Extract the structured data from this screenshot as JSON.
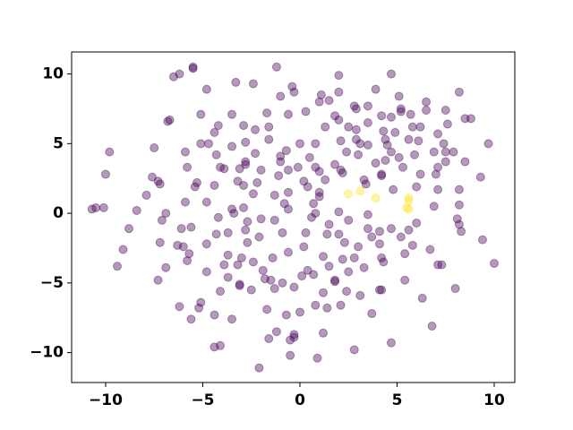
{
  "chart_data": {
    "type": "scatter",
    "xlim": [
      -11.75,
      11.06
    ],
    "ylim": [
      -12.15,
      11.58
    ],
    "xticks": [
      {
        "value": -10,
        "label": "−10"
      },
      {
        "value": -5,
        "label": "−5"
      },
      0,
      5,
      10
    ],
    "yticks": [
      {
        "value": -10,
        "label": "−10"
      },
      {
        "value": -5,
        "label": "−5"
      },
      0,
      5,
      10
    ],
    "alpha": 0.4,
    "series": [
      {
        "color": "#440154",
        "x": [
          -5.5,
          -5.5,
          -6.5,
          -6.2,
          -1.2,
          2.0,
          4.7,
          -3.3,
          -2.4,
          -4.8,
          -0.4,
          1.1,
          3.9,
          5.1,
          -1.0,
          -0.3,
          2.0,
          1.0,
          1.5,
          2.8,
          3.5,
          5.2,
          5.2,
          6.5,
          8.2,
          -5.1,
          -6.7,
          -6.8,
          -3.5,
          -1.7,
          -0.6,
          0.3,
          1.8,
          2.0,
          2.9,
          4.2,
          4.7,
          5.7,
          6.5,
          7.5,
          7.6,
          8.5,
          8.8,
          5.8,
          -4.2,
          -4.4,
          -2.9,
          -2.3,
          -1.6,
          1.3,
          2.5,
          2.9,
          3.5,
          4.3,
          4.9,
          6.2,
          7.1,
          9.7,
          -5.1,
          -4.7,
          -3.5,
          -2.8,
          -1.6,
          -0.7,
          0.0,
          0.8,
          2.1,
          2.9,
          3.1,
          3.5,
          4.4,
          5.6,
          6.1,
          7.4,
          -9.8,
          -7.5,
          -5.9,
          -4.3,
          -2.3,
          -1.0,
          0.5,
          2.4,
          3.0,
          4.5,
          4.7,
          5.9,
          6.9,
          7.5,
          7.9,
          -5.8,
          -4.1,
          -2.8,
          -2.8,
          -1.0,
          -0.1,
          0.8,
          1.8,
          2.1,
          3.9,
          4.4,
          5.1,
          5.3,
          7.1,
          7.5,
          8.5,
          -10.0,
          -7.6,
          -7.3,
          -7.2,
          -5.3,
          -3.9,
          -3.1,
          -2.0,
          -1.1,
          -0.6,
          0.2,
          1.0,
          1.3,
          2.2,
          3.3,
          4.2,
          4.2,
          6.2,
          7.0,
          9.3,
          -7.9,
          -5.4,
          -4.4,
          -3.2,
          -2.9,
          -2.2,
          -0.6,
          0.4,
          1.0,
          3.4,
          4.8,
          6.0,
          7.1,
          8.2,
          -10.7,
          -10.5,
          -10.1,
          -8.4,
          -6.9,
          -5.9,
          -4.8,
          -3.5,
          -2.9,
          -2.4,
          -1.3,
          -0.8,
          0.7,
          1.0,
          2.0,
          3.5,
          6.9,
          8.2,
          -8.8,
          -7.1,
          -6.1,
          -5.6,
          -4.2,
          -3.4,
          -2.7,
          -2.0,
          -1.3,
          -0.6,
          0.6,
          0.8,
          1.5,
          2.5,
          3.5,
          4.1,
          4.7,
          5.6,
          6.0,
          8.1,
          8.2,
          8.3,
          -9.1,
          -7.2,
          -6.3,
          -6.0,
          -5.8,
          -4.8,
          -4.3,
          -3.7,
          -2.8,
          -2.7,
          -2.1,
          -0.9,
          0.3,
          1.4,
          2.0,
          2.3,
          3.0,
          3.7,
          4.1,
          5.2,
          5.8,
          9.4,
          -9.4,
          -6.9,
          -5.7,
          -4.8,
          -3.7,
          -3.2,
          -3.0,
          -2.4,
          -1.4,
          -0.6,
          0.2,
          1.2,
          2.2,
          2.8,
          4.2,
          5.4,
          6.7,
          7.1,
          7.3,
          10.0,
          -7.3,
          -3.9,
          -3.7,
          -3.1,
          -3.1,
          -1.9,
          -1.5,
          -0.9,
          -0.3,
          0.4,
          0.7,
          1.5,
          1.8,
          2.5,
          3.3,
          4.3,
          5.4,
          8.0,
          -6.2,
          -5.1,
          -4.1,
          -2.5,
          -1.8,
          -1.3,
          0.1,
          1.2,
          1.8,
          2.4,
          3.1,
          4.1,
          4.2,
          6.3,
          -4.4,
          -5.2,
          -5.6,
          -3.5,
          -1.7,
          -0.7,
          0.0,
          0.8,
          1.4,
          2.1,
          3.7,
          6.8,
          -4.1,
          -4.4,
          -1.6,
          -1.2,
          -0.3,
          -0.3,
          -0.5,
          1.2,
          2.8,
          4.7,
          -0.5,
          0.9,
          -2.1
        ],
        "values": [
          10.5,
          10.4,
          9.8,
          10.0,
          10.5,
          9.9,
          10.0,
          9.4,
          9.3,
          8.9,
          9.1,
          8.5,
          8.9,
          8.4,
          8.4,
          8.7,
          8.7,
          8.0,
          8.1,
          7.7,
          7.7,
          7.5,
          7.3,
          8.0,
          8.7,
          7.1,
          6.7,
          6.6,
          7.1,
          7.2,
          7.1,
          7.3,
          7.0,
          6.7,
          7.5,
          7.0,
          6.9,
          7.1,
          7.4,
          7.4,
          6.4,
          6.8,
          6.8,
          6.2,
          6.3,
          5.8,
          6.3,
          6.0,
          6.2,
          6.2,
          6.2,
          6.0,
          6.5,
          5.9,
          5.8,
          6.2,
          5.7,
          5.0,
          5.0,
          5.0,
          4.8,
          5.1,
          5.3,
          4.5,
          5.0,
          5.0,
          5.2,
          5.3,
          5.0,
          4.9,
          5.3,
          5.3,
          5.2,
          5.0,
          4.4,
          4.7,
          4.4,
          4.2,
          4.3,
          4.1,
          4.0,
          4.4,
          4.2,
          4.9,
          4.4,
          4.2,
          4.4,
          4.4,
          4.4,
          3.3,
          3.3,
          3.7,
          3.5,
          3.7,
          3.3,
          3.3,
          3.5,
          3.1,
          3.6,
          3.8,
          4.0,
          3.3,
          3.3,
          3.7,
          3.7,
          2.8,
          2.6,
          2.3,
          2.1,
          2.2,
          3.2,
          3.2,
          3.1,
          2.7,
          3.1,
          2.3,
          3.0,
          2.4,
          2.9,
          2.4,
          2.7,
          2.8,
          2.8,
          2.8,
          2.6,
          1.3,
          1.9,
          2.0,
          2.3,
          2.0,
          2.2,
          1.5,
          1.9,
          1.2,
          2.1,
          1.7,
          1.9,
          1.7,
          1.7,
          0.3,
          0.4,
          0.4,
          0.2,
          0.0,
          0.8,
          0.8,
          0.3,
          0.4,
          1.4,
          1.3,
          0.7,
          0.7,
          1.5,
          0.1,
          -0.1,
          0.5,
          0.6,
          -1.1,
          -0.5,
          -1.1,
          -1.0,
          -0.3,
          0.0,
          -0.6,
          -0.4,
          -0.5,
          0.3,
          -0.3,
          0.0,
          -0.8,
          -0.5,
          -1.1,
          -1.3,
          -1.1,
          -1.2,
          -0.7,
          -0.4,
          -0.8,
          -1.3,
          -2.6,
          -2.1,
          -2.3,
          -2.4,
          -3.4,
          -2.2,
          -1.5,
          -1.4,
          -1.2,
          -2.1,
          -1.7,
          -1.4,
          -1.4,
          -1.5,
          -1.5,
          -2.1,
          -2.4,
          -1.7,
          -2.2,
          -1.7,
          -2.3,
          -1.9,
          -3.8,
          -3.9,
          -2.9,
          -4.2,
          -3.0,
          -3.7,
          -3.2,
          -3.5,
          -3.2,
          -2.8,
          -2.4,
          -3.1,
          -3.3,
          -3.2,
          -3.2,
          -2.9,
          -2.6,
          -3.7,
          -3.7,
          -3.6,
          -4.8,
          -3.7,
          -4.6,
          -5.1,
          -5.2,
          -4.1,
          -4.8,
          -5.0,
          -5.3,
          -4.1,
          -4.4,
          -3.8,
          -4.9,
          -4.2,
          -3.9,
          -3.5,
          -4.8,
          -5.4,
          -6.7,
          -6.4,
          -5.6,
          -5.5,
          -4.7,
          -5.4,
          -4.5,
          -5.7,
          -4.8,
          -5.6,
          -5.9,
          -5.5,
          -5.5,
          -6.1,
          -7.3,
          -6.8,
          -7.6,
          -7.6,
          -6.9,
          -7.3,
          -7.1,
          -6.6,
          -6.8,
          -6.6,
          -7.2,
          -8.1,
          -9.5,
          -9.6,
          -9.0,
          -8.5,
          -8.9,
          -8.7,
          -9.1,
          -8.6,
          -9.8,
          -9.3,
          -10.2,
          -10.4,
          -11.1
        ]
      },
      {
        "color": "#fde725",
        "x": [
          2.5,
          3.1,
          3.9,
          5.6,
          5.6,
          5.6,
          5.5
        ],
        "values": [
          1.4,
          1.6,
          1.1,
          1.1,
          0.9,
          0.3,
          0.4
        ]
      }
    ]
  }
}
